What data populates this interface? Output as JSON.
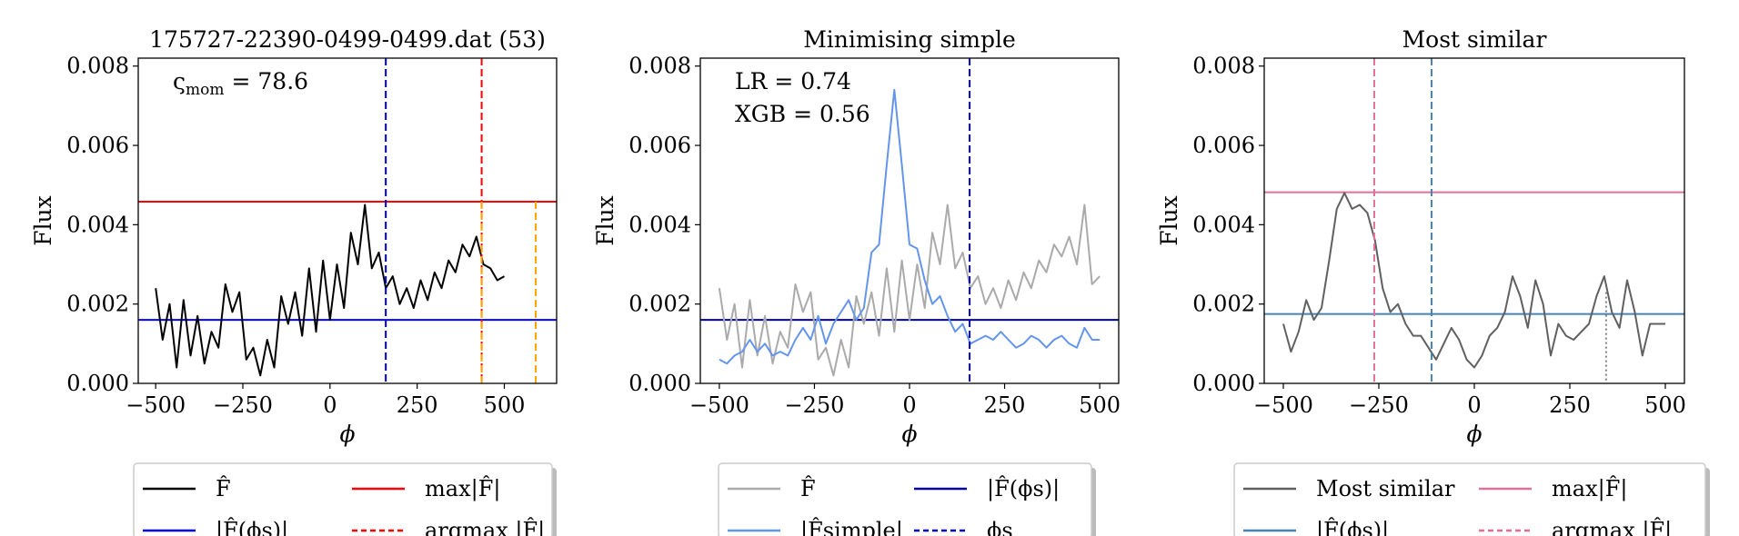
{
  "chart_data": [
    {
      "type": "line",
      "title": "175727-22390-0499-0499.dat (53)",
      "xlabel": "ϕ",
      "ylabel": "Flux",
      "xlim": [
        -550,
        650
      ],
      "ylim": [
        0,
        0.0082
      ],
      "xticks": [
        -500,
        -250,
        0,
        250,
        500
      ],
      "xtick_labels": [
        "−500",
        "−250",
        "0",
        "250",
        "500"
      ],
      "yticks": [
        0,
        0.002,
        0.004,
        0.006,
        0.008
      ],
      "ytick_labels": [
        "0.000",
        "0.002",
        "0.004",
        "0.006",
        "0.008"
      ],
      "annotation": "ς",
      "annotation_sub": "mom",
      "annotation_value": "= 78.6",
      "hlines": [
        {
          "y": 0.00458,
          "color": "#ff0000",
          "style": "solid"
        },
        {
          "y": 0.0016,
          "color": "#0000ff",
          "style": "solid"
        }
      ],
      "vlines": [
        {
          "x": 160,
          "color": "#0000cc",
          "style": "dashed",
          "y0": 0,
          "y1": 0.0082
        },
        {
          "x": 435,
          "color": "#ff0000",
          "style": "dashed",
          "y0": 0,
          "y1": 0.0082
        },
        {
          "x": 435,
          "color": "#ffa500",
          "style": "dashed",
          "y0": 0,
          "y1": 0.00458
        },
        {
          "x": 590,
          "color": "#ffa500",
          "style": "dashed",
          "y0": 0,
          "y1": 0.00458
        }
      ],
      "series": [
        {
          "color": "#000000",
          "x": [
            -500,
            -480,
            -460,
            -440,
            -420,
            -400,
            -380,
            -360,
            -340,
            -320,
            -300,
            -280,
            -260,
            -240,
            -220,
            -200,
            -180,
            -160,
            -140,
            -120,
            -100,
            -80,
            -60,
            -40,
            -20,
            0,
            20,
            40,
            60,
            80,
            100,
            120,
            140,
            160,
            180,
            200,
            220,
            240,
            260,
            280,
            300,
            320,
            340,
            360,
            380,
            400,
            420,
            440,
            460,
            480,
            500
          ],
          "y": [
            0.0024,
            0.0011,
            0.002,
            0.0004,
            0.0021,
            0.0007,
            0.0017,
            0.0005,
            0.0013,
            0.0009,
            0.0025,
            0.0018,
            0.0023,
            0.0006,
            0.0009,
            0.0002,
            0.0011,
            0.0004,
            0.0022,
            0.0015,
            0.0023,
            0.0012,
            0.0029,
            0.0013,
            0.0031,
            0.0016,
            0.003,
            0.0019,
            0.0038,
            0.003,
            0.0045,
            0.0029,
            0.0033,
            0.0024,
            0.0027,
            0.002,
            0.0024,
            0.0019,
            0.0026,
            0.0021,
            0.0028,
            0.0024,
            0.0031,
            0.0028,
            0.0035,
            0.0032,
            0.0037,
            0.003,
            0.0029,
            0.0026,
            0.0027
          ]
        }
      ],
      "legend": {
        "placement": "bottom",
        "entries": [
          {
            "label": "F̂",
            "color": "#000000",
            "style": "solid"
          },
          {
            "label": "max|F̂|",
            "color": "#ff0000",
            "style": "solid"
          },
          {
            "label": "|F̂(ϕs)|",
            "color": "#0000ff",
            "style": "solid"
          },
          {
            "label": "argmax |F̂|",
            "color": "#ff0000",
            "style": "dashed"
          }
        ]
      }
    },
    {
      "type": "line",
      "title": "Minimising simple",
      "xlabel": "ϕ",
      "ylabel": "Flux",
      "xlim": [
        -550,
        550
      ],
      "ylim": [
        0,
        0.0082
      ],
      "xticks": [
        -500,
        -250,
        0,
        250,
        500
      ],
      "xtick_labels": [
        "−500",
        "−250",
        "0",
        "250",
        "500"
      ],
      "yticks": [
        0,
        0.002,
        0.004,
        0.006,
        0.008
      ],
      "ytick_labels": [
        "0.000",
        "0.002",
        "0.004",
        "0.006",
        "0.008"
      ],
      "annotations": [
        "LR = 0.74",
        "XGB = 0.56"
      ],
      "hlines": [
        {
          "y": 0.0016,
          "color": "#0000aa",
          "style": "solid"
        }
      ],
      "vlines": [
        {
          "x": 158,
          "color": "#0000cc",
          "style": "dashed",
          "y0": 0,
          "y1": 0.0082
        }
      ],
      "series": [
        {
          "color": "#aaaaaa",
          "x": [
            -500,
            -480,
            -460,
            -440,
            -420,
            -400,
            -380,
            -360,
            -340,
            -320,
            -300,
            -280,
            -260,
            -240,
            -220,
            -200,
            -180,
            -160,
            -140,
            -120,
            -100,
            -80,
            -60,
            -40,
            -20,
            0,
            20,
            40,
            60,
            80,
            100,
            120,
            140,
            160,
            180,
            200,
            220,
            240,
            260,
            280,
            300,
            320,
            340,
            360,
            380,
            400,
            420,
            440,
            460,
            480,
            500
          ],
          "y": [
            0.0024,
            0.0011,
            0.002,
            0.0004,
            0.0021,
            0.0007,
            0.0017,
            0.0005,
            0.0013,
            0.0009,
            0.0025,
            0.0018,
            0.0023,
            0.0006,
            0.0009,
            0.0002,
            0.0011,
            0.0004,
            0.0022,
            0.0015,
            0.0023,
            0.0012,
            0.0029,
            0.0013,
            0.0031,
            0.0016,
            0.003,
            0.0019,
            0.0038,
            0.003,
            0.0045,
            0.0029,
            0.0033,
            0.0024,
            0.0027,
            0.002,
            0.0024,
            0.0019,
            0.0026,
            0.0021,
            0.0028,
            0.0024,
            0.0031,
            0.0028,
            0.0035,
            0.0032,
            0.0037,
            0.003,
            0.0045,
            0.0025,
            0.0027
          ]
        },
        {
          "color": "#6495ed",
          "x": [
            -500,
            -480,
            -460,
            -440,
            -420,
            -400,
            -380,
            -360,
            -340,
            -320,
            -300,
            -280,
            -260,
            -240,
            -220,
            -200,
            -180,
            -160,
            -140,
            -120,
            -100,
            -80,
            -60,
            -40,
            -20,
            0,
            20,
            40,
            60,
            80,
            100,
            120,
            140,
            160,
            180,
            200,
            220,
            240,
            260,
            280,
            300,
            320,
            340,
            360,
            380,
            400,
            420,
            440,
            460,
            480,
            500
          ],
          "y": [
            0.0006,
            0.0005,
            0.0007,
            0.0008,
            0.0011,
            0.0008,
            0.001,
            0.0007,
            0.0008,
            0.0007,
            0.0011,
            0.0014,
            0.0011,
            0.0017,
            0.001,
            0.0015,
            0.0018,
            0.0021,
            0.0016,
            0.0019,
            0.0033,
            0.0035,
            0.0055,
            0.0074,
            0.0055,
            0.0035,
            0.0034,
            0.0026,
            0.002,
            0.0022,
            0.0017,
            0.0013,
            0.0015,
            0.001,
            0.0011,
            0.0012,
            0.0011,
            0.0013,
            0.0011,
            0.0009,
            0.001,
            0.0012,
            0.0011,
            0.0009,
            0.0011,
            0.0012,
            0.001,
            0.0009,
            0.0014,
            0.0011,
            0.0011
          ]
        }
      ],
      "legend": {
        "placement": "bottom",
        "entries": [
          {
            "label": "F̂",
            "color": "#aaaaaa",
            "style": "solid"
          },
          {
            "label": "|F̂(ϕs)|",
            "color": "#0000aa",
            "style": "solid"
          },
          {
            "label": "|F̂simple|",
            "color": "#6495ed",
            "style": "solid"
          },
          {
            "label": "ϕs",
            "color": "#0000cc",
            "style": "dashed"
          }
        ]
      }
    },
    {
      "type": "line",
      "title": "Most similar",
      "xlabel": "ϕ",
      "ylabel": "Flux",
      "xlim": [
        -550,
        550
      ],
      "ylim": [
        0,
        0.0082
      ],
      "xticks": [
        -500,
        -250,
        0,
        250,
        500
      ],
      "xtick_labels": [
        "−500",
        "−250",
        "0",
        "250",
        "500"
      ],
      "yticks": [
        0,
        0.002,
        0.004,
        0.006,
        0.008
      ],
      "ytick_labels": [
        "0.000",
        "0.002",
        "0.004",
        "0.006",
        "0.008"
      ],
      "hlines": [
        {
          "y": 0.00482,
          "color": "#e0709a",
          "style": "solid"
        },
        {
          "y": 0.00175,
          "color": "#4682b4",
          "style": "solid"
        }
      ],
      "vlines": [
        {
          "x": -262,
          "color": "#e0709a",
          "style": "dashed",
          "y0": 0,
          "y1": 0.0082
        },
        {
          "x": -112,
          "color": "#4682b4",
          "style": "dashed",
          "y0": 0,
          "y1": 0.0082
        },
        {
          "x": 345,
          "color": "#808080",
          "style": "dotted",
          "y0": 0,
          "y1": 0.0023
        }
      ],
      "series": [
        {
          "color": "#606060",
          "x": [
            -500,
            -480,
            -460,
            -440,
            -420,
            -400,
            -380,
            -360,
            -340,
            -320,
            -300,
            -280,
            -260,
            -240,
            -220,
            -200,
            -180,
            -160,
            -140,
            -120,
            -100,
            -80,
            -60,
            -40,
            -20,
            0,
            20,
            40,
            60,
            80,
            100,
            120,
            140,
            160,
            180,
            200,
            220,
            240,
            260,
            280,
            300,
            320,
            340,
            360,
            380,
            400,
            420,
            440,
            460,
            480,
            500
          ],
          "y": [
            0.0015,
            0.0008,
            0.0013,
            0.0021,
            0.0016,
            0.0019,
            0.0031,
            0.0044,
            0.0048,
            0.0044,
            0.0045,
            0.0043,
            0.0036,
            0.0024,
            0.0018,
            0.002,
            0.0015,
            0.0012,
            0.0012,
            0.0009,
            0.0006,
            0.001,
            0.0014,
            0.0011,
            0.0006,
            0.0004,
            0.0007,
            0.0012,
            0.0014,
            0.0018,
            0.0027,
            0.0022,
            0.0014,
            0.0026,
            0.002,
            0.0007,
            0.0015,
            0.0012,
            0.0011,
            0.0013,
            0.0015,
            0.0022,
            0.0027,
            0.0018,
            0.0014,
            0.0026,
            0.0018,
            0.0007,
            0.0015,
            0.0015,
            0.0015
          ]
        }
      ],
      "legend": {
        "placement": "bottom",
        "entries": [
          {
            "label": "Most similar",
            "color": "#606060",
            "style": "solid"
          },
          {
            "label": "max|F̂|",
            "color": "#e0709a",
            "style": "solid"
          },
          {
            "label": "|F̂(ϕs)|",
            "color": "#4682b4",
            "style": "solid"
          },
          {
            "label": "argmax |F̂|",
            "color": "#e0709a",
            "style": "dashed"
          }
        ]
      }
    }
  ]
}
